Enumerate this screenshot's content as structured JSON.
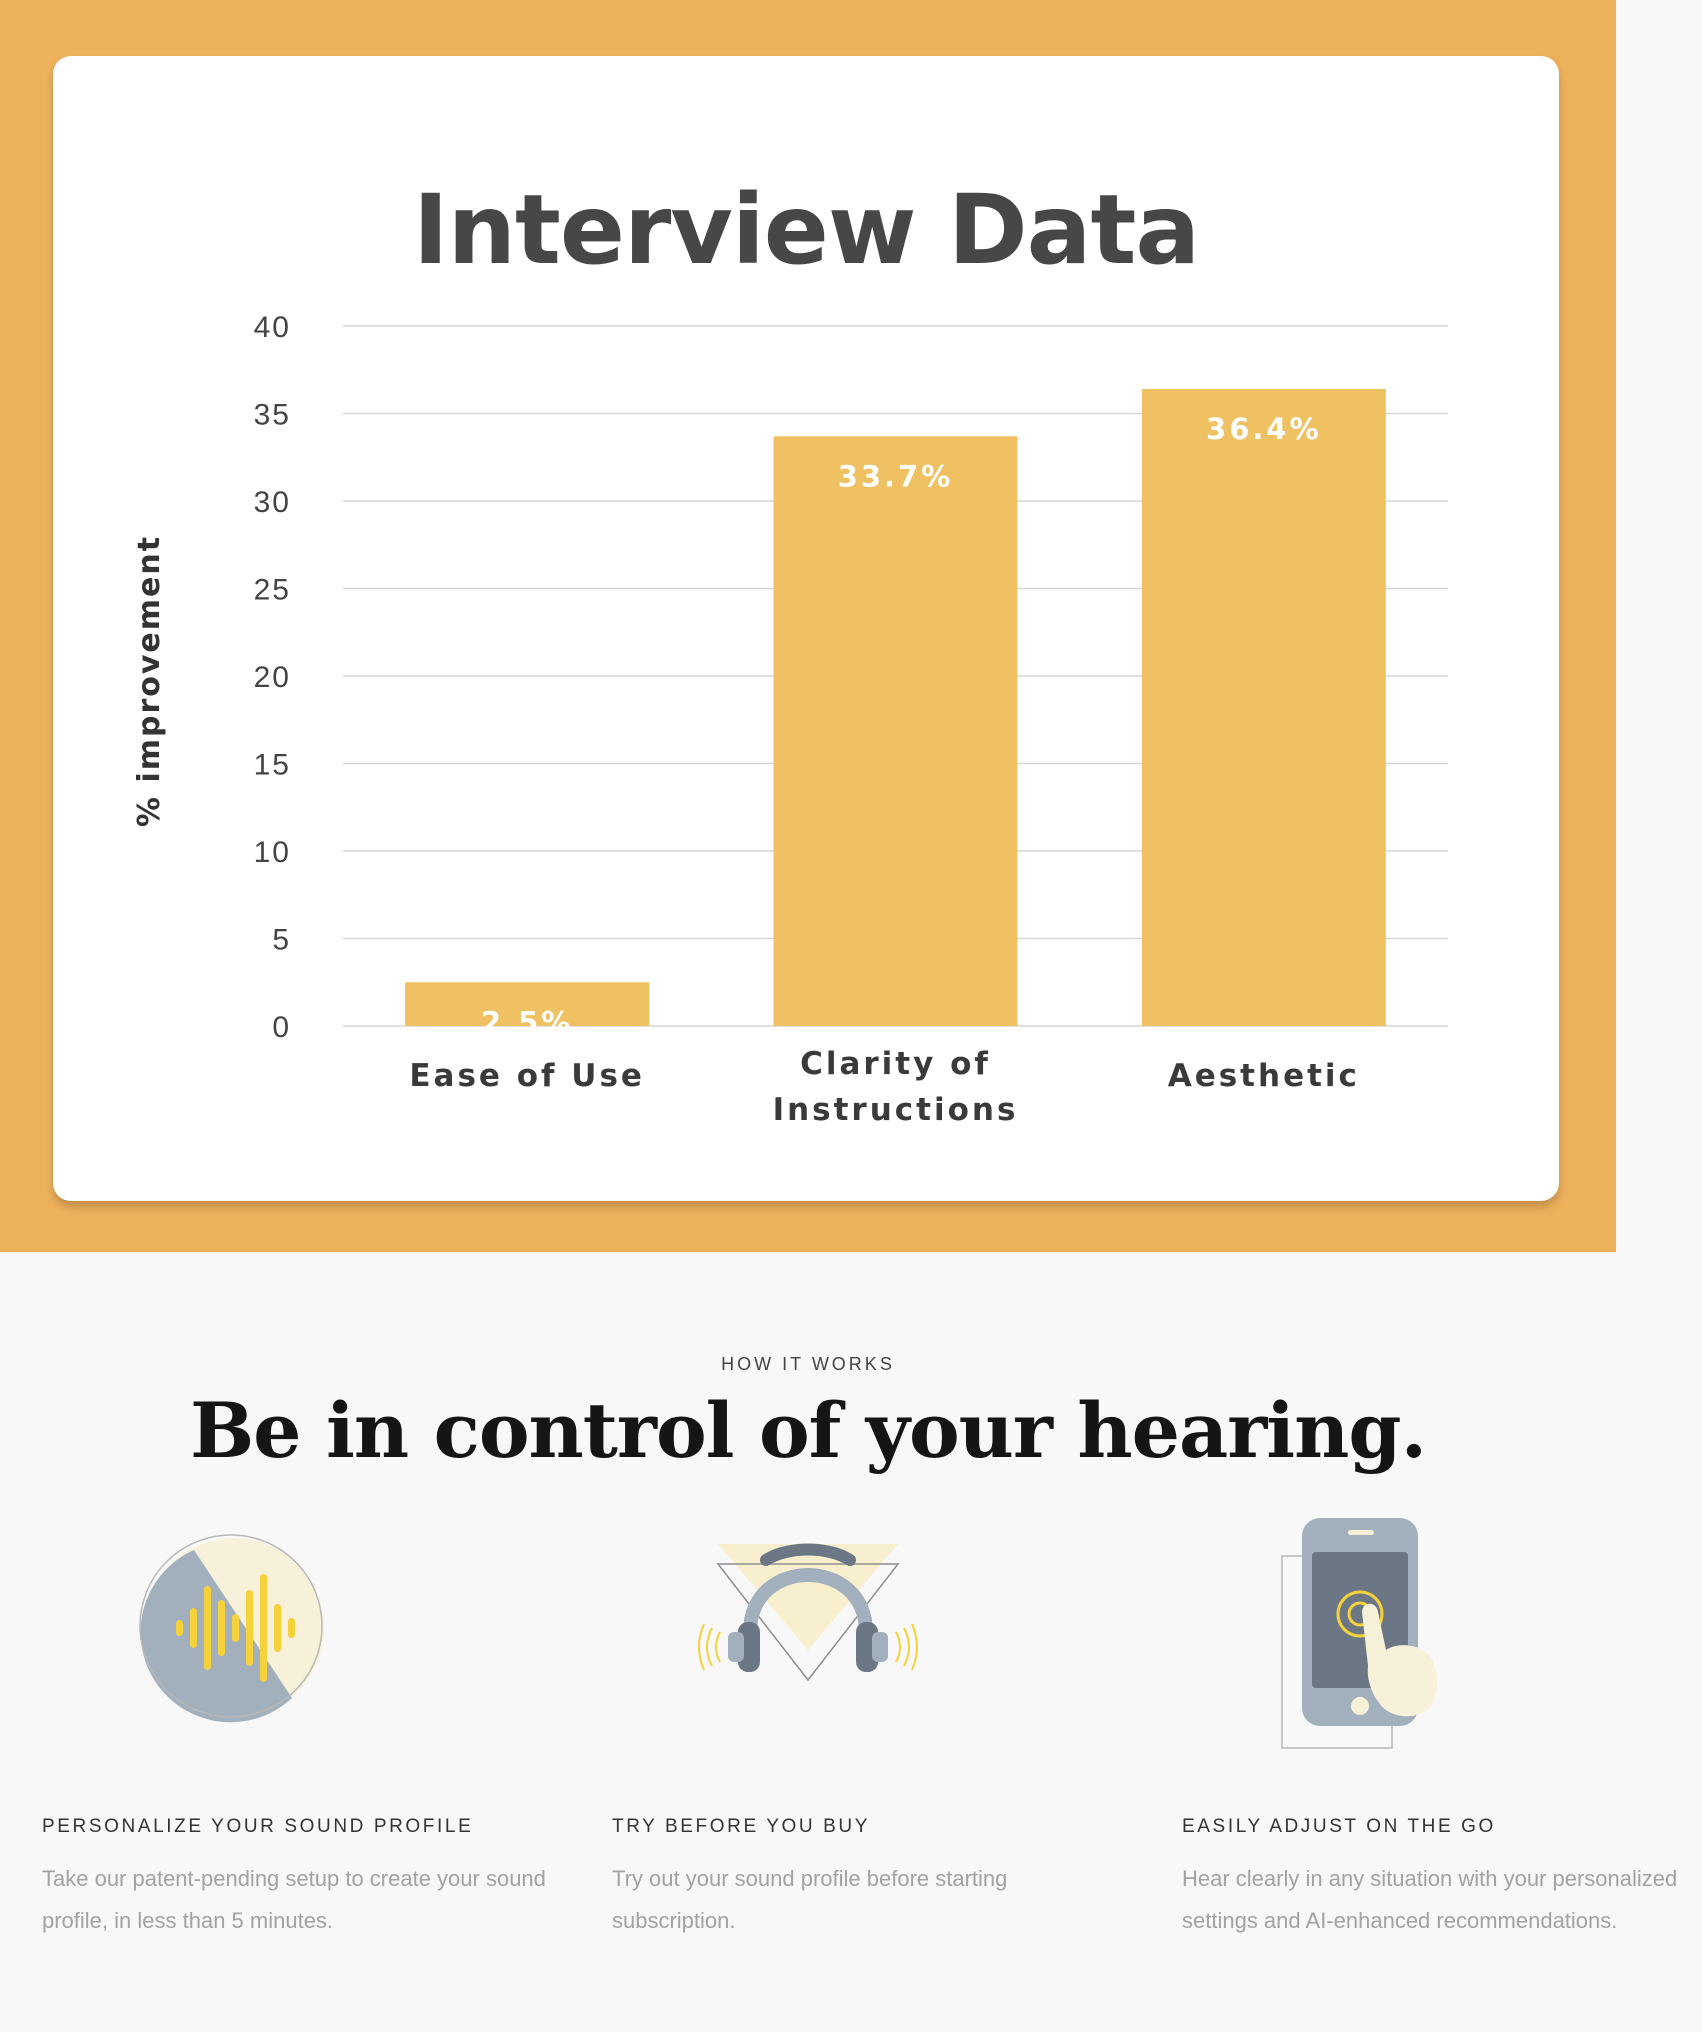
{
  "hero": {
    "background": "#edb05b",
    "card_title": "Interview Data"
  },
  "chart_data": {
    "type": "bar",
    "title": "Interview Data",
    "ylabel": "% improvement",
    "xlabel": "",
    "ylim": [
      0,
      40
    ],
    "yticks": [
      0,
      5,
      10,
      15,
      20,
      25,
      30,
      35,
      40
    ],
    "grid": true,
    "bar_color": "#efc162",
    "categories": [
      "Ease of Use",
      "Clarity of Instructions",
      "Aesthetic"
    ],
    "category_lines": [
      [
        "Ease of Use"
      ],
      [
        "Clarity of",
        "Instructions"
      ],
      [
        "Aesthetic"
      ]
    ],
    "values": [
      2.5,
      33.7,
      36.4
    ],
    "data_labels": [
      "2.5%",
      "33.7%",
      "36.4%"
    ]
  },
  "how_it_works": {
    "eyebrow": "HOW IT WORKS",
    "headline": "Be in control of your hearing.",
    "features": [
      {
        "icon": "sound-wave-icon",
        "title": "PERSONALIZE YOUR SOUND PROFILE",
        "description": "Take our patent-pending setup to create your sound profile, in less than 5 minutes."
      },
      {
        "icon": "headphones-icon",
        "title": "TRY BEFORE YOU BUY",
        "description": "Try out your sound profile before starting subscription."
      },
      {
        "icon": "phone-tap-icon",
        "title": "EASILY ADJUST ON THE GO",
        "description": "Hear clearly in any situation with your personalized settings and AI-enhanced recommendations."
      }
    ],
    "colors": {
      "accent_yellow": "#f5d13a",
      "cream": "#f8f1d9",
      "slate": "#a2b0bd",
      "dark_slate": "#6b7785"
    }
  }
}
